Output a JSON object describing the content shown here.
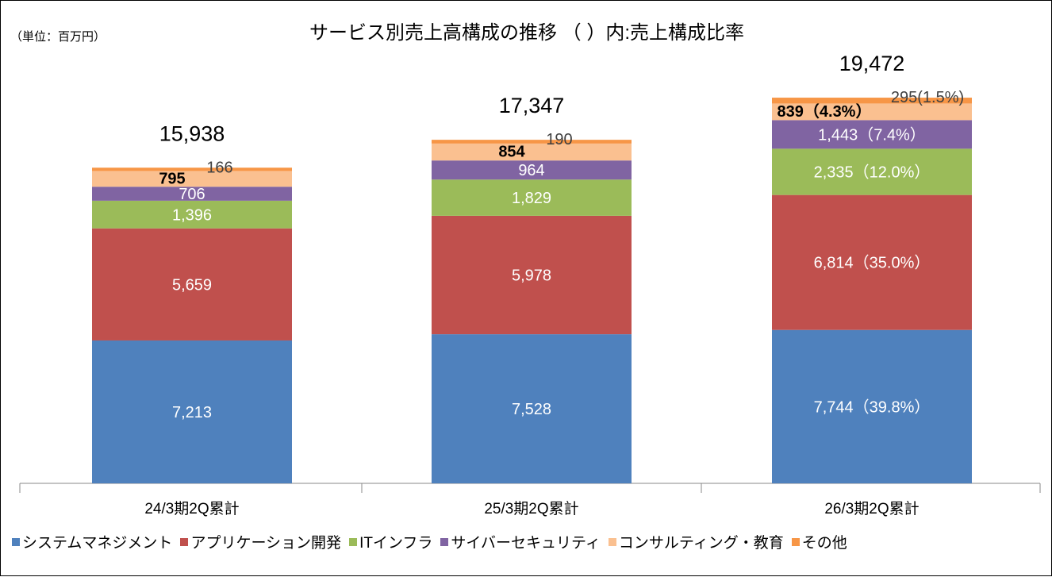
{
  "chart_data": {
    "type": "bar",
    "stacked": true,
    "title": "サービス別売上高構成の推移 （ ）内:売上構成比率",
    "unit_label": "（単位：百万円）",
    "categories": [
      "24/3期2Q累計",
      "25/3期2Q累計",
      "26/3期2Q累計"
    ],
    "totals": [
      15938,
      17347,
      19472
    ],
    "total_labels": [
      "15,938",
      "17,347",
      "19,472"
    ],
    "series": [
      {
        "name": "システムマネジメント",
        "color": "#4F81BD",
        "values": [
          7213,
          7528,
          7744
        ],
        "labels": [
          "7,213",
          "7,528",
          "7,744（39.8%）"
        ]
      },
      {
        "name": "アプリケーション開発",
        "color": "#C0504D",
        "values": [
          5659,
          5978,
          6814
        ],
        "labels": [
          "5,659",
          "5,978",
          "6,814（35.0%）"
        ]
      },
      {
        "name": "ITインフラ",
        "color": "#9BBB59",
        "values": [
          1396,
          1829,
          2335
        ],
        "labels": [
          "1,396",
          "1,829",
          "2,335（12.0%）"
        ]
      },
      {
        "name": "サイバーセキュリティ",
        "color": "#8064A2",
        "values": [
          706,
          964,
          1443
        ],
        "labels": [
          "706",
          "964",
          "1,443（7.4%）"
        ]
      },
      {
        "name": "コンサルティング・教育",
        "color": "#FAC090",
        "values": [
          795,
          854,
          839
        ],
        "labels": [
          "795",
          "854",
          "839（4.3%）"
        ]
      },
      {
        "name": "その他",
        "color": "#F79646",
        "values": [
          166,
          190,
          295
        ],
        "labels": [
          "166",
          "190",
          "295(1.5%)"
        ]
      }
    ],
    "ylim": [
      0,
      19472
    ],
    "grid": false,
    "legend_position": "bottom"
  }
}
